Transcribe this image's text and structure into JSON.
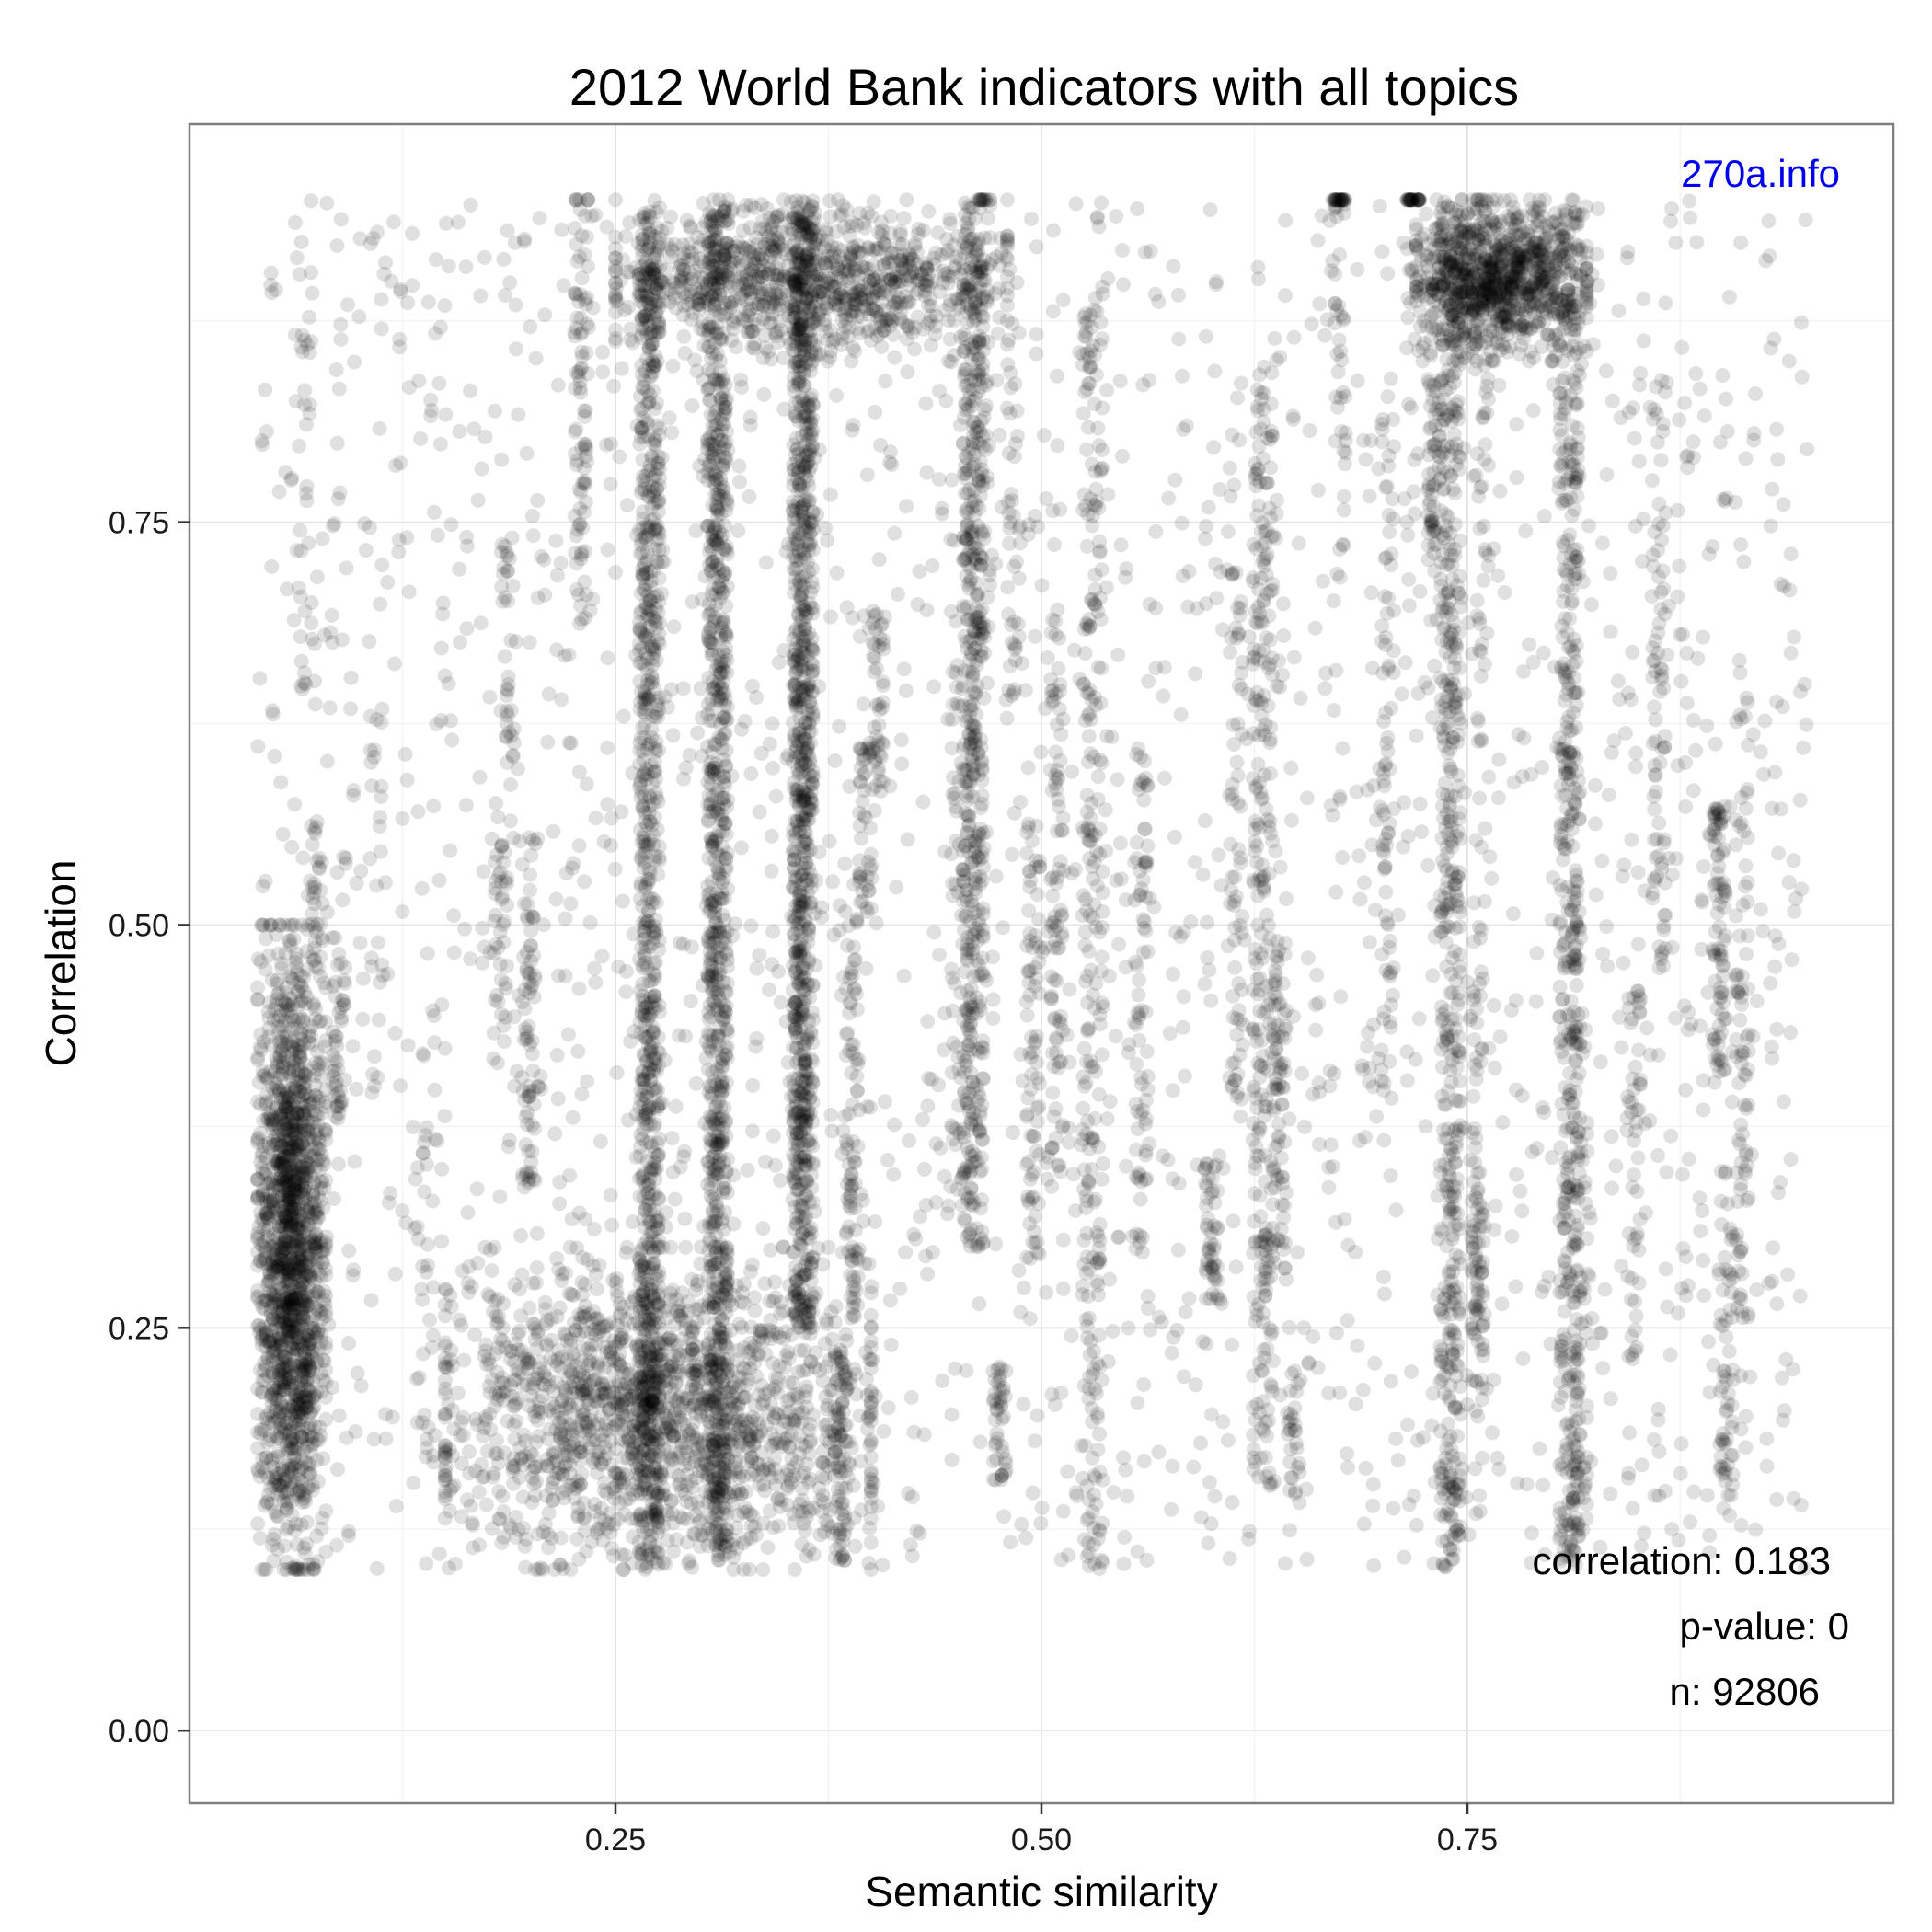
{
  "chart_data": {
    "type": "scatter",
    "title": "2012 World Bank indicators with all topics",
    "xlabel": "Semantic similarity",
    "ylabel": "Correlation",
    "xlim": [
      0,
      1
    ],
    "ylim": [
      -0.045,
      0.997
    ],
    "x_ticks": [
      {
        "value": 0.25,
        "label": "0.25"
      },
      {
        "value": 0.5,
        "label": "0.50"
      },
      {
        "value": 0.75,
        "label": "0.75"
      }
    ],
    "y_ticks": [
      {
        "value": 0.0,
        "label": "0.00"
      },
      {
        "value": 0.25,
        "label": "0.25"
      },
      {
        "value": 0.5,
        "label": "0.50"
      },
      {
        "value": 0.75,
        "label": "0.75"
      }
    ],
    "grid": true,
    "point_color": "#000000",
    "point_alpha": 0.12,
    "point_count": 92806,
    "x_range_data": [
      0.04,
      0.95
    ],
    "y_range_data": [
      0.1,
      0.95
    ],
    "dense_regions": [
      {
        "x": [
          0.04,
          0.08
        ],
        "y": [
          0.1,
          0.5
        ],
        "density": "very high"
      },
      {
        "x": [
          0.15,
          0.4
        ],
        "y": [
          0.1,
          0.3
        ],
        "density": "very high"
      },
      {
        "x": [
          0.25,
          0.48
        ],
        "y": [
          0.85,
          0.95
        ],
        "density": "high"
      },
      {
        "x": [
          0.72,
          0.82
        ],
        "y": [
          0.85,
          0.95
        ],
        "density": "high"
      }
    ],
    "column_clusters": [
      {
        "x": 0.27,
        "y": [
          0.1,
          0.95
        ],
        "density": "very high"
      },
      {
        "x": 0.31,
        "y": [
          0.1,
          0.95
        ],
        "density": "very high"
      },
      {
        "x": 0.36,
        "y": [
          0.25,
          0.95
        ],
        "density": "very high"
      },
      {
        "x": 0.46,
        "y": [
          0.3,
          0.95
        ],
        "density": "high"
      },
      {
        "x": 0.53,
        "y": [
          0.1,
          0.9
        ],
        "density": "medium"
      },
      {
        "x": 0.63,
        "y": [
          0.15,
          0.85
        ],
        "density": "medium"
      },
      {
        "x": 0.74,
        "y": [
          0.1,
          0.95
        ],
        "density": "high"
      },
      {
        "x": 0.81,
        "y": [
          0.1,
          0.95
        ],
        "density": "high"
      }
    ],
    "annotations": {
      "watermark": "270a.info",
      "watermark_color": "#0000ee",
      "correlation": "correlation: 0.183",
      "p_value": "p-value: 0",
      "n": "n: 92806"
    }
  }
}
